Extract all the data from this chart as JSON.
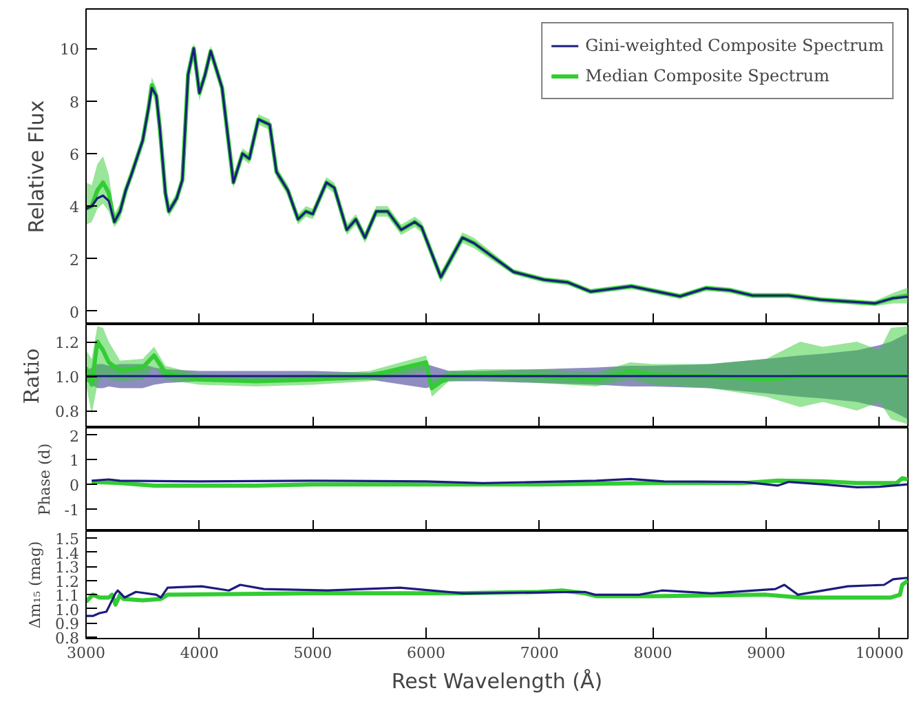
{
  "chart_data": [
    {
      "type": "line",
      "ylabel": "Relative Flux",
      "xlim": [
        3000,
        10250
      ],
      "xticks": [
        3000,
        4000,
        5000,
        6000,
        7000,
        8000,
        9000,
        10000
      ],
      "ylim": [
        -0.5,
        11.5
      ],
      "yticks": [
        0,
        2,
        4,
        6,
        8,
        10
      ],
      "tick_labels": "y",
      "legend": "top right",
      "x": [
        3000,
        3050,
        3100,
        3150,
        3200,
        3250,
        3300,
        3350,
        3400,
        3500,
        3550,
        3580,
        3620,
        3650,
        3700,
        3730,
        3800,
        3850,
        3900,
        3950,
        4000,
        4050,
        4100,
        4150,
        4200,
        4300,
        4380,
        4440,
        4520,
        4620,
        4680,
        4780,
        4870,
        4940,
        5000,
        5120,
        5190,
        5300,
        5380,
        5460,
        5560,
        5660,
        5780,
        5900,
        5960,
        6130,
        6320,
        6420,
        6770,
        7040,
        7250,
        7450,
        7810,
        8240,
        8470,
        8680,
        8880,
        9200,
        9480,
        9960,
        10120,
        10250
      ],
      "series": [
        {
          "name": "Gini-weighted Composite Spectrum",
          "color": "#1c1c80",
          "values": [
            3.9,
            4.0,
            4.3,
            4.4,
            4.2,
            3.4,
            3.8,
            4.6,
            5.2,
            6.5,
            7.7,
            8.5,
            8.2,
            7.0,
            4.5,
            3.8,
            4.3,
            5.0,
            9.0,
            10.0,
            8.3,
            9.0,
            9.9,
            9.2,
            8.5,
            4.9,
            6.0,
            5.8,
            7.3,
            7.1,
            5.3,
            4.6,
            3.5,
            3.8,
            3.7,
            4.9,
            4.7,
            3.1,
            3.5,
            2.8,
            3.8,
            3.8,
            3.1,
            3.4,
            3.2,
            1.3,
            2.8,
            2.6,
            1.5,
            1.2,
            1.1,
            0.75,
            0.95,
            0.57,
            0.88,
            0.8,
            0.6,
            0.6,
            0.44,
            0.3,
            0.5,
            0.55
          ]
        },
        {
          "name": "Median Composite Spectrum",
          "color": "#33cc33",
          "values": [
            3.9,
            4.0,
            4.6,
            4.9,
            4.5,
            3.4,
            3.8,
            4.6,
            5.2,
            6.5,
            7.7,
            8.6,
            8.2,
            7.0,
            4.5,
            3.8,
            4.3,
            5.0,
            9.0,
            10.0,
            8.3,
            9.0,
            9.9,
            9.2,
            8.5,
            4.9,
            6.0,
            5.8,
            7.3,
            7.1,
            5.3,
            4.6,
            3.5,
            3.8,
            3.7,
            4.9,
            4.7,
            3.1,
            3.5,
            2.8,
            3.8,
            3.8,
            3.1,
            3.4,
            3.2,
            1.3,
            2.8,
            2.6,
            1.5,
            1.2,
            1.1,
            0.75,
            0.95,
            0.57,
            0.88,
            0.8,
            0.6,
            0.6,
            0.44,
            0.3,
            0.5,
            0.6
          ],
          "lower": [
            3.3,
            3.4,
            3.9,
            4.1,
            3.8,
            3.2,
            3.5,
            4.4,
            5.0,
            6.3,
            7.5,
            8.3,
            7.9,
            6.8,
            4.3,
            3.6,
            4.1,
            4.8,
            8.8,
            9.7,
            8.0,
            8.8,
            9.7,
            9.0,
            8.3,
            4.7,
            5.8,
            5.6,
            7.1,
            6.9,
            5.1,
            4.4,
            3.3,
            3.6,
            3.5,
            4.7,
            4.5,
            2.9,
            3.3,
            2.6,
            3.6,
            3.6,
            2.9,
            3.2,
            3.0,
            1.1,
            2.6,
            2.4,
            1.4,
            1.1,
            1.0,
            0.65,
            0.85,
            0.47,
            0.78,
            0.7,
            0.5,
            0.5,
            0.34,
            0.2,
            0.3,
            0.3
          ],
          "upper": [
            4.9,
            4.8,
            5.6,
            5.9,
            5.2,
            3.7,
            4.1,
            4.8,
            5.4,
            6.7,
            7.9,
            8.9,
            8.5,
            7.2,
            4.7,
            4.0,
            4.5,
            5.2,
            9.2,
            10.2,
            8.5,
            9.2,
            10.1,
            9.4,
            8.7,
            5.1,
            6.2,
            6.0,
            7.5,
            7.3,
            5.5,
            4.8,
            3.7,
            4.0,
            3.9,
            5.1,
            4.9,
            3.3,
            3.7,
            3.0,
            4.0,
            4.0,
            3.3,
            3.6,
            3.4,
            1.5,
            3.0,
            2.8,
            1.6,
            1.3,
            1.2,
            0.85,
            1.05,
            0.67,
            0.98,
            0.9,
            0.7,
            0.7,
            0.54,
            0.4,
            0.7,
            0.9
          ]
        }
      ]
    },
    {
      "type": "line",
      "ylabel": "Ratio",
      "xlim": [
        3000,
        10250
      ],
      "xticks": [
        3000,
        4000,
        5000,
        6000,
        7000,
        8000,
        9000,
        10000
      ],
      "ylim": [
        0.7,
        1.3
      ],
      "yticks": [
        0.8,
        {
          "value": 1,
          "label": "1.0"
        },
        1.2
      ],
      "tick_labels": "y",
      "x": [
        3000,
        3050,
        3100,
        3150,
        3200,
        3300,
        3500,
        3600,
        3700,
        4000,
        4500,
        5000,
        5500,
        6000,
        6050,
        6200,
        6500,
        7000,
        7500,
        7800,
        8000,
        8500,
        9000,
        9300,
        9500,
        9800,
        10000,
        10100,
        10250
      ],
      "series": [
        {
          "color": "#1c1c80",
          "values": [
            1,
            1,
            1,
            1,
            1,
            1,
            1,
            1,
            1,
            1,
            1,
            1,
            1,
            1,
            1,
            1,
            1,
            1,
            1,
            1,
            1,
            1,
            1,
            1,
            1,
            1,
            1,
            1,
            1
          ],
          "lower": [
            0.97,
            0.95,
            0.93,
            0.93,
            0.94,
            0.93,
            0.93,
            0.95,
            0.96,
            0.97,
            0.97,
            0.97,
            0.98,
            0.93,
            0.94,
            0.97,
            0.97,
            0.96,
            0.95,
            0.94,
            0.94,
            0.93,
            0.9,
            0.88,
            0.87,
            0.85,
            0.82,
            0.8,
            0.75
          ],
          "upper": [
            1.03,
            1.05,
            1.07,
            1.07,
            1.06,
            1.07,
            1.07,
            1.05,
            1.04,
            1.03,
            1.03,
            1.03,
            1.02,
            1.07,
            1.06,
            1.03,
            1.03,
            1.04,
            1.05,
            1.06,
            1.06,
            1.07,
            1.1,
            1.12,
            1.13,
            1.15,
            1.18,
            1.2,
            1.25
          ]
        },
        {
          "color": "#33cc33",
          "values": [
            1.05,
            0.95,
            1.2,
            1.15,
            1.08,
            1.03,
            1.05,
            1.12,
            1.02,
            0.98,
            0.97,
            0.98,
            1.0,
            1.08,
            0.93,
            1.0,
            1.01,
            1.0,
            0.98,
            1.03,
            1.01,
            1.0,
            0.98,
            1.0,
            1.0,
            1.0,
            1.0,
            1.0,
            1.0
          ],
          "lower": [
            0.95,
            0.78,
            0.95,
            1.0,
            0.98,
            0.97,
            0.98,
            1.05,
            0.98,
            0.95,
            0.94,
            0.95,
            0.97,
            1.03,
            0.88,
            0.97,
            0.98,
            0.96,
            0.94,
            0.98,
            0.95,
            0.93,
            0.88,
            0.82,
            0.85,
            0.8,
            0.85,
            0.75,
            0.72
          ],
          "upper": [
            1.15,
            1.1,
            1.29,
            1.28,
            1.2,
            1.09,
            1.1,
            1.17,
            1.06,
            1.01,
            1.0,
            1.01,
            1.03,
            1.12,
            0.98,
            1.03,
            1.04,
            1.04,
            1.02,
            1.08,
            1.07,
            1.07,
            1.1,
            1.2,
            1.17,
            1.2,
            1.15,
            1.28,
            1.29
          ]
        }
      ]
    },
    {
      "type": "line",
      "ylabel": "Phase (d)",
      "xlim": [
        3000,
        10250
      ],
      "xticks": [
        3000,
        4000,
        5000,
        6000,
        7000,
        8000,
        9000,
        10000
      ],
      "ylim": [
        -1.9,
        2.3
      ],
      "yticks": [
        -1,
        0,
        1,
        2
      ],
      "tick_labels": "y",
      "series": [
        {
          "color": "#1c1c80",
          "x": [
            3050,
            3200,
            3300,
            4000,
            5000,
            6000,
            6500,
            7000,
            7500,
            7800,
            8100,
            8800,
            9100,
            9200,
            9500,
            9800,
            10000,
            10250
          ],
          "values": [
            0.15,
            0.2,
            0.15,
            0.12,
            0.15,
            0.12,
            0.05,
            0.1,
            0.15,
            0.22,
            0.12,
            0.1,
            -0.05,
            0.1,
            0.0,
            -0.12,
            -0.1,
            0.0
          ]
        },
        {
          "color": "#33cc33",
          "x": [
            3050,
            3300,
            3600,
            4500,
            5000,
            6000,
            7000,
            8000,
            8800,
            9100,
            9500,
            9800,
            10150,
            10200,
            10250
          ],
          "values": [
            0.1,
            0.05,
            -0.05,
            -0.05,
            0.0,
            0.0,
            0.0,
            0.05,
            0.05,
            0.15,
            0.12,
            0.05,
            0.05,
            0.25,
            0.2
          ]
        }
      ]
    },
    {
      "type": "line",
      "xlabel": "Rest Wavelength (Å)",
      "ylabel": "Δm₁₅ (mag)",
      "xlim": [
        3000,
        10250
      ],
      "xticks": [
        3000,
        4000,
        5000,
        6000,
        7000,
        8000,
        9000,
        10000
      ],
      "ylim": [
        0.79,
        1.55
      ],
      "yticks": [
        0.8,
        0.9,
        {
          "value": 1,
          "label": "1.0"
        },
        1.1,
        1.2,
        1.3,
        1.4,
        1.5
      ],
      "series": [
        {
          "color": "#1c1c80",
          "x": [
            3000,
            3060,
            3120,
            3180,
            3260,
            3280,
            3340,
            3440,
            3620,
            3660,
            3720,
            4020,
            4260,
            4360,
            4570,
            5130,
            5770,
            6330,
            7400,
            7490,
            7880,
            8080,
            8520,
            9080,
            9160,
            9280,
            9720,
            10040,
            10120,
            10250
          ],
          "values": [
            0.95,
            0.95,
            0.97,
            0.98,
            1.11,
            1.13,
            1.08,
            1.12,
            1.1,
            1.08,
            1.15,
            1.16,
            1.13,
            1.17,
            1.14,
            1.13,
            1.15,
            1.11,
            1.12,
            1.1,
            1.1,
            1.13,
            1.11,
            1.14,
            1.17,
            1.1,
            1.16,
            1.17,
            1.21,
            1.22
          ]
        },
        {
          "color": "#33cc33",
          "x": [
            3000,
            3060,
            3120,
            3200,
            3230,
            3260,
            3300,
            3330,
            3500,
            3660,
            3720,
            5000,
            6300,
            7000,
            7200,
            7400,
            7500,
            8000,
            9000,
            9300,
            9800,
            10100,
            10180,
            10200,
            10250
          ],
          "values": [
            1.05,
            1.1,
            1.08,
            1.08,
            1.1,
            1.03,
            1.1,
            1.07,
            1.06,
            1.07,
            1.1,
            1.11,
            1.11,
            1.12,
            1.13,
            1.11,
            1.09,
            1.09,
            1.1,
            1.08,
            1.08,
            1.08,
            1.1,
            1.17,
            1.2
          ]
        }
      ]
    }
  ]
}
